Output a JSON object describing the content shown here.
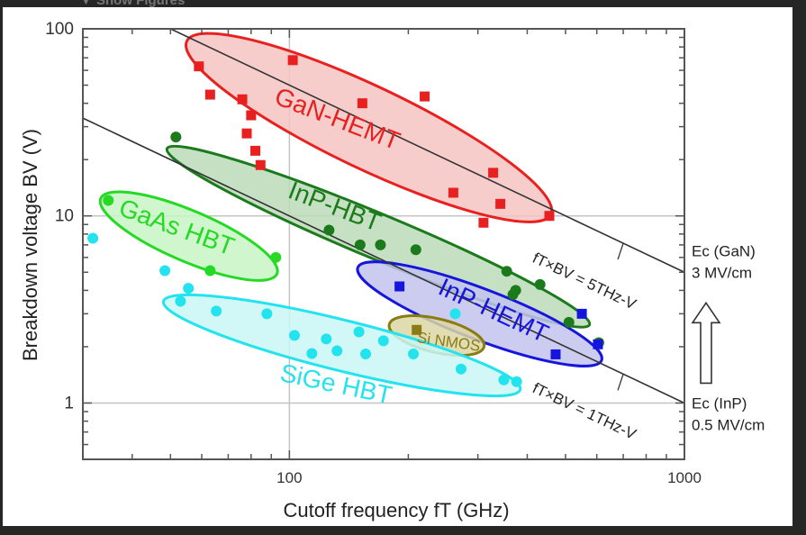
{
  "header": {
    "toggle_label": "▼ Show Figures"
  },
  "chart_data": {
    "type": "scatter",
    "xscale": "log",
    "yscale": "log",
    "xlim": [
      30,
      1000
    ],
    "ylim": [
      0.5,
      100
    ],
    "xlabel": "Cutoff frequency fT (GHz)",
    "ylabel": "Breakdown voltage BV (V)",
    "xticks": [
      {
        "value": 100,
        "label": "100"
      },
      {
        "value": 1000,
        "label": "1000"
      }
    ],
    "yticks": [
      {
        "value": 1,
        "label": "1"
      },
      {
        "value": 10,
        "label": "10"
      },
      {
        "value": 100,
        "label": "100"
      }
    ],
    "grid": true,
    "series": [
      {
        "name": "GaN-HEMT",
        "marker": "square",
        "color": "#e8201f",
        "fill": "#f6c4c2",
        "ellipse": {
          "from": [
            55,
            86
          ],
          "to": [
            459,
            10.2
          ],
          "half_width_decades": 0.22
        },
        "label_at": [
          130,
          30
        ],
        "label_rotate": 21,
        "points": [
          [
            59,
            63
          ],
          [
            63,
            44.5
          ],
          [
            76,
            42
          ],
          [
            80,
            34.5
          ],
          [
            78,
            27.6
          ],
          [
            82,
            22.3
          ],
          [
            84.5,
            18.7
          ],
          [
            102,
            68
          ],
          [
            153,
            40
          ],
          [
            220,
            43.5
          ],
          [
            260,
            13.3
          ],
          [
            328,
            17
          ],
          [
            342,
            11.6
          ],
          [
            310,
            9.2
          ],
          [
            455,
            10
          ]
        ]
      },
      {
        "name": "InP-HBT",
        "marker": "circle",
        "color": "#1b7a1b",
        "fill": "#bcdbb9",
        "ellipse": {
          "from": [
            49,
            22.9
          ],
          "to": [
            575,
            2.62
          ],
          "half_width_decades": 0.12
        },
        "label_at": [
          128,
          10.2
        ],
        "label_rotate": 21,
        "points": [
          [
            51.6,
            26.4
          ],
          [
            126,
            8.4
          ],
          [
            151,
            7.0
          ],
          [
            170,
            7.0
          ],
          [
            209,
            6.6
          ],
          [
            355,
            5.06
          ],
          [
            368,
            3.8
          ],
          [
            374,
            4.0
          ],
          [
            431,
            4.3
          ],
          [
            510,
            2.7
          ],
          [
            607,
            2.1
          ]
        ]
      },
      {
        "name": "GaAs HBT",
        "marker": "circle",
        "color": "#25d925",
        "fill": "#c8f4c4",
        "ellipse": {
          "from": [
            33.3,
            12.4
          ],
          "to": [
            93,
            4.9
          ],
          "half_width_decades": 0.135
        },
        "label_at": [
          51,
          7.9
        ],
        "label_rotate": 20,
        "points": [
          [
            34.8,
            12.1
          ],
          [
            63,
            5.1
          ],
          [
            92.4,
            6.0
          ]
        ]
      },
      {
        "name": "InP-HEMT",
        "marker": "square",
        "color": "#1515dd",
        "fill": "#c3c3ef",
        "ellipse": {
          "from": [
            149,
            5.3
          ],
          "to": [
            617,
            1.69
          ],
          "half_width_decades": 0.135
        },
        "label_at": [
          322,
          2.85
        ],
        "label_rotate": 25,
        "points": [
          [
            190,
            4.2
          ],
          [
            472,
            1.82
          ],
          [
            550,
            3.0
          ],
          [
            604,
            2.06
          ]
        ]
      },
      {
        "name": "Si NMOS",
        "marker": "square",
        "color": "#8a7b12",
        "fill": "#dcd7a4",
        "ellipse": {
          "from": [
            179,
            2.63
          ],
          "to": [
            311,
            2.0
          ],
          "half_width_decades": 0.09
        },
        "label_at": [
          252,
          2.0
        ],
        "label_rotate": 8,
        "points": [
          [
            210,
            2.46
          ]
        ]
      },
      {
        "name": "SiGe HBT",
        "marker": "circle",
        "color": "#22e3ee",
        "fill": "#c9f6f6",
        "ellipse": {
          "from": [
            48,
            3.5
          ],
          "to": [
            384,
            1.18
          ],
          "half_width_decades": 0.135
        },
        "label_at": [
          130,
          1.14
        ],
        "label_rotate": 12,
        "points": [
          [
            31.8,
            7.6
          ],
          [
            48.4,
            5.1
          ],
          [
            55.5,
            4.1
          ],
          [
            53,
            3.5
          ],
          [
            65.3,
            3.1
          ],
          [
            87.7,
            3.0
          ],
          [
            103,
            2.3
          ],
          [
            114,
            1.84
          ],
          [
            124,
            2.2
          ],
          [
            132,
            1.9
          ],
          [
            150,
            2.4
          ],
          [
            156,
            1.83
          ],
          [
            173,
            2.15
          ],
          [
            206,
            1.83
          ],
          [
            263,
            3.0
          ],
          [
            272,
            1.52
          ],
          [
            349,
            1.33
          ],
          [
            376,
            1.3
          ]
        ]
      }
    ],
    "reference_lines": [
      {
        "product_GHzV": 5000,
        "label": "fT×BV = 5THz-V",
        "label_at": [
          410,
          5.7
        ]
      },
      {
        "product_GHzV": 1000,
        "label": "fT×BV = 1THz-V",
        "label_at": [
          410,
          1.15
        ]
      }
    ],
    "annotations": [
      {
        "lines": [
          "Ec (GaN)",
          "3 MV/cm"
        ],
        "at_bv": 5
      },
      {
        "lines": [
          "Ec (InP)",
          "0.5 MV/cm"
        ],
        "at_bv": 1
      }
    ]
  }
}
